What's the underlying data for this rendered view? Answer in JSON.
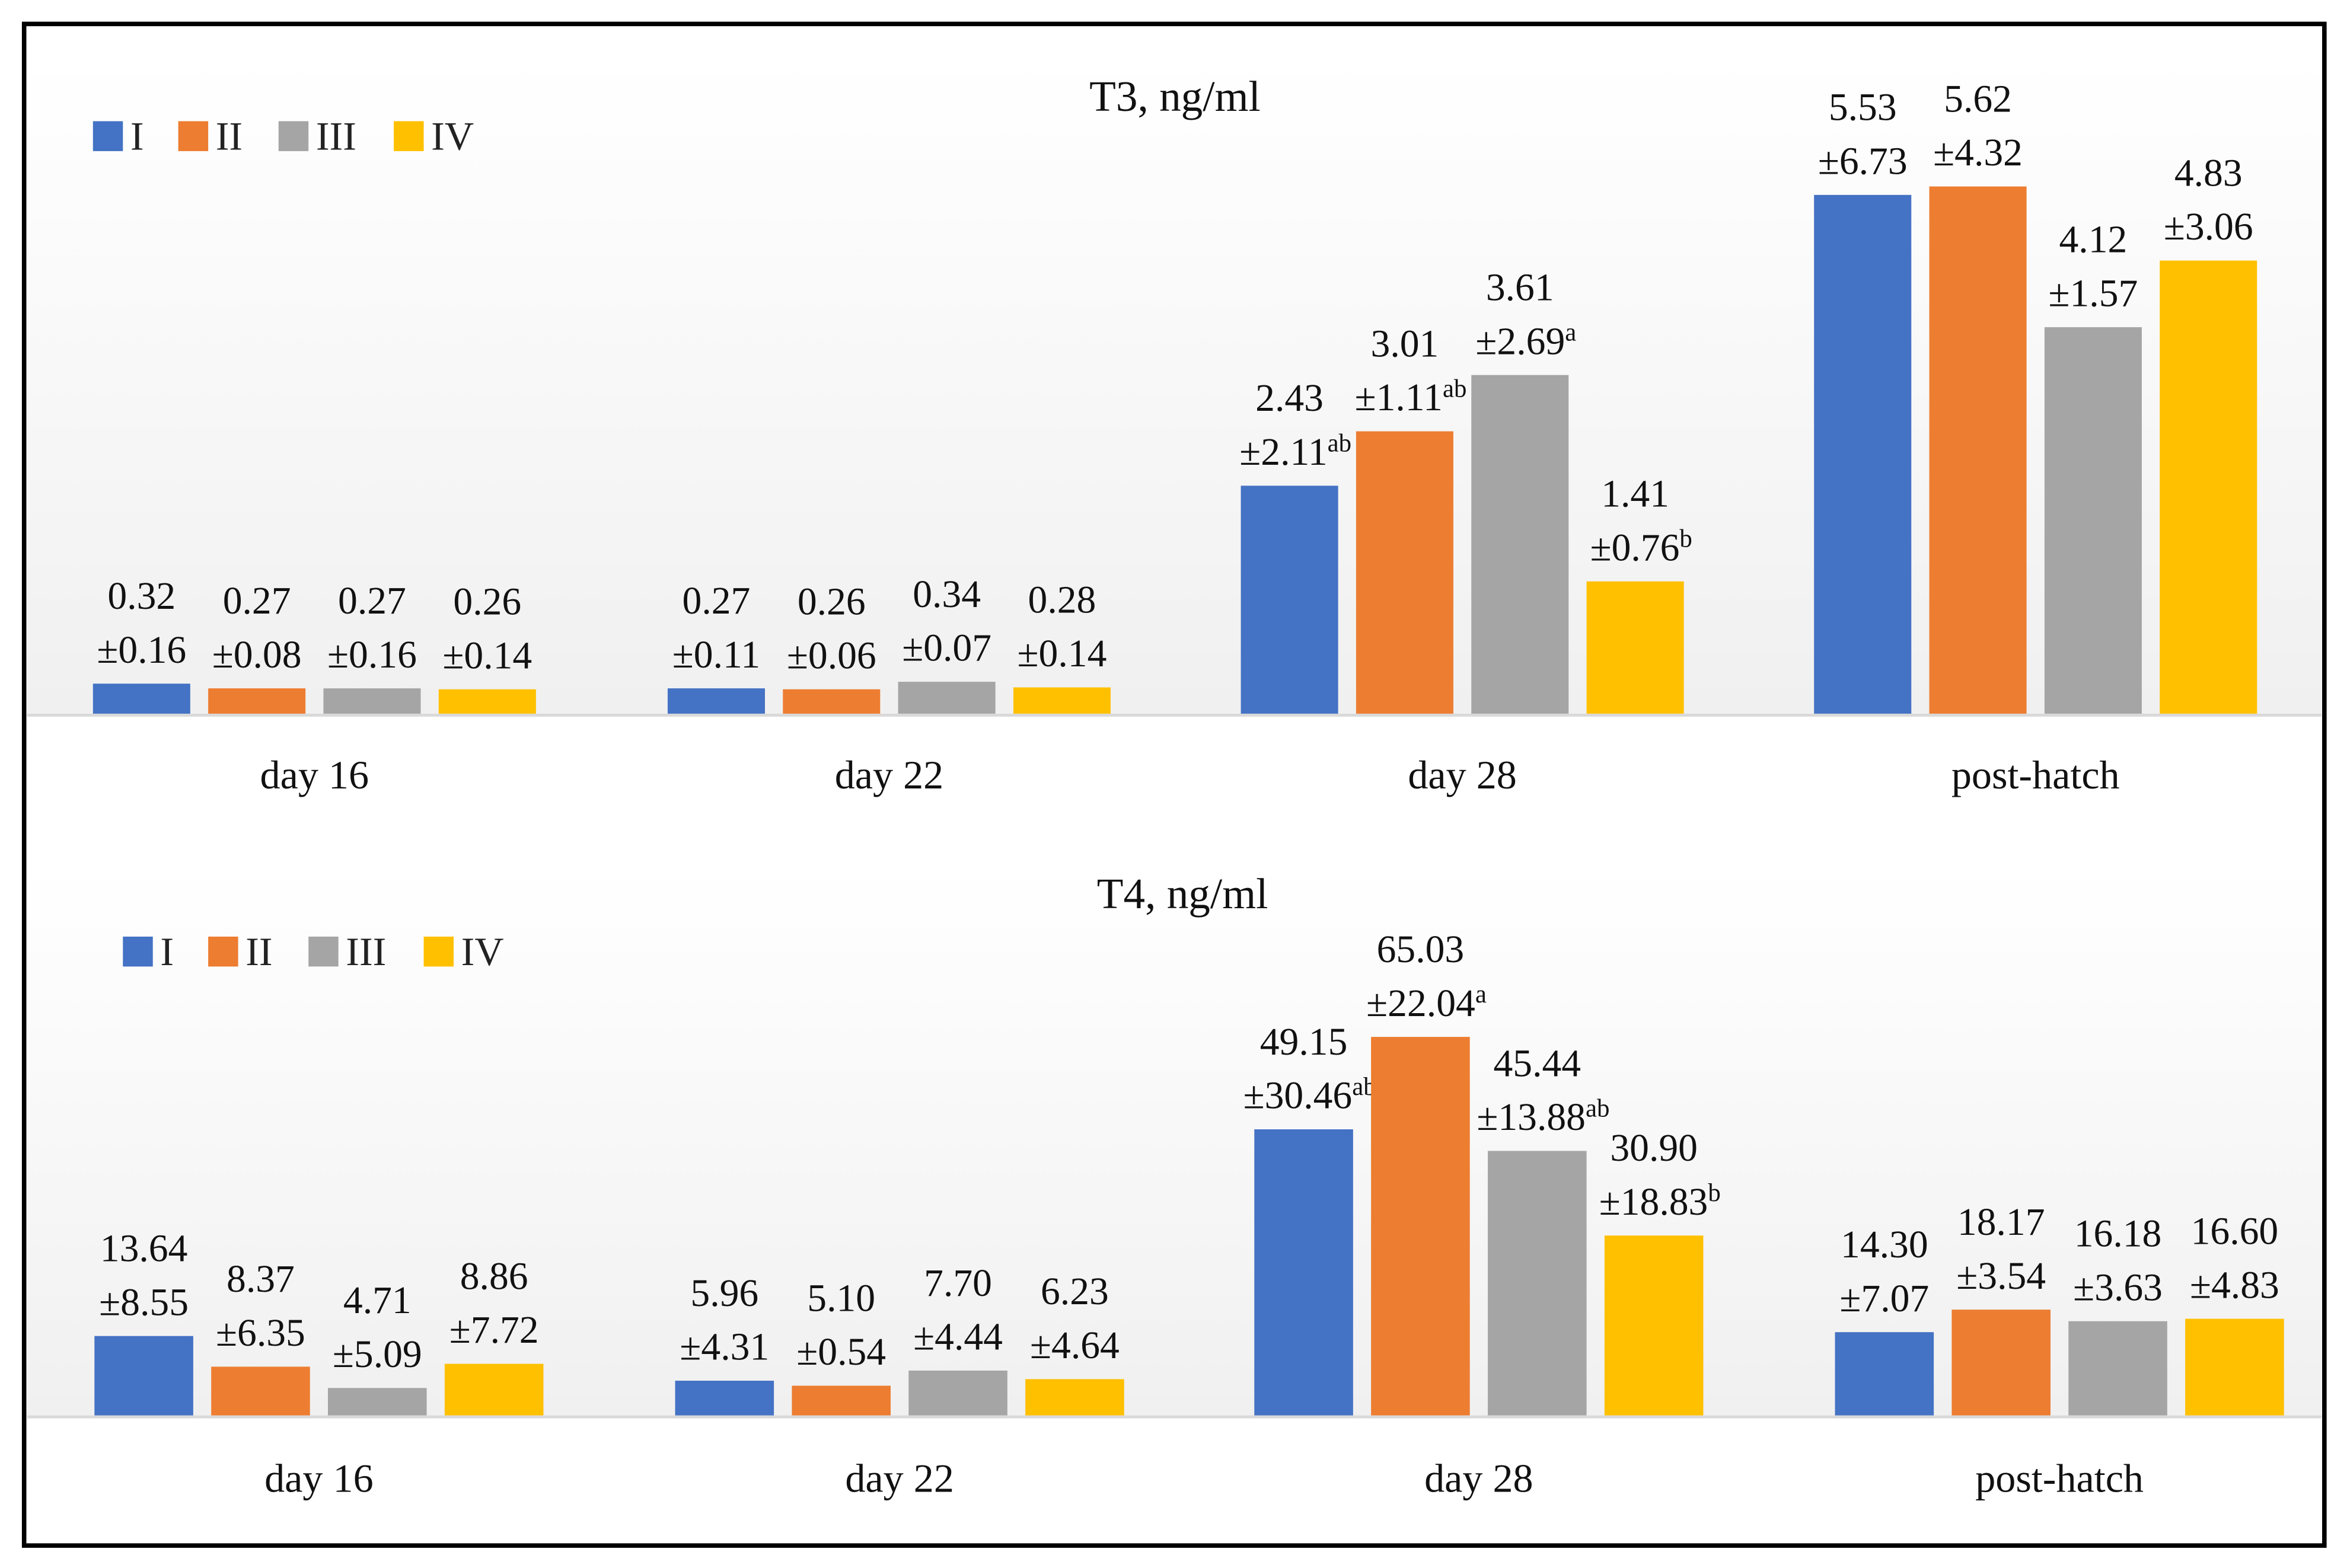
{
  "colors": {
    "I": "#4472C4",
    "II": "#ED7D31",
    "III": "#A5A5A5",
    "IV": "#FFC000"
  },
  "chart_data": [
    {
      "type": "bar",
      "title": "T3, ng/ml",
      "xlabel": "",
      "ylabel": "",
      "categories": [
        "day 16",
        "day 22",
        "day 28",
        "post-hatch"
      ],
      "legend": {
        "placement": "top-left",
        "entries": [
          "I",
          "II",
          "III",
          "IV"
        ]
      },
      "ylim": [
        0,
        6
      ],
      "grid": false,
      "series": [
        {
          "name": "I",
          "values": [
            0.32,
            0.27,
            2.43,
            5.53
          ],
          "sd": [
            "±0.16",
            "±0.11",
            "±2.11",
            "±6.73"
          ],
          "sup": [
            "",
            "",
            "ab",
            ""
          ]
        },
        {
          "name": "II",
          "values": [
            0.27,
            0.26,
            3.01,
            5.62
          ],
          "sd": [
            "±0.08",
            "±0.06",
            "±1.11",
            "±4.32"
          ],
          "sup": [
            "",
            "",
            "ab",
            ""
          ]
        },
        {
          "name": "III",
          "values": [
            0.27,
            0.34,
            3.61,
            4.12
          ],
          "sd": [
            "±0.16",
            "±0.07",
            "±2.69",
            "±1.57"
          ],
          "sup": [
            "",
            "",
            "a",
            ""
          ]
        },
        {
          "name": "IV",
          "values": [
            0.26,
            0.28,
            1.41,
            4.83
          ],
          "sd": [
            "±0.14",
            "±0.14",
            "±0.76",
            "±3.06"
          ],
          "sup": [
            "",
            "",
            "b",
            ""
          ]
        }
      ]
    },
    {
      "type": "bar",
      "title": "T4, ng/ml",
      "xlabel": "",
      "ylabel": "",
      "categories": [
        "day 16",
        "day 22",
        "day 28",
        "post-hatch"
      ],
      "legend": {
        "placement": "top-left",
        "entries": [
          "I",
          "II",
          "III",
          "IV"
        ]
      },
      "ylim": [
        0,
        70
      ],
      "grid": false,
      "series": [
        {
          "name": "I",
          "values": [
            13.64,
            5.96,
            49.15,
            14.3
          ],
          "sd": [
            "±8.55",
            "±4.31",
            "±30.46",
            "±7.07"
          ],
          "sup": [
            "",
            "",
            "ab",
            ""
          ]
        },
        {
          "name": "II",
          "values": [
            8.37,
            5.1,
            65.03,
            18.17
          ],
          "sd": [
            "±6.35",
            "±0.54",
            "±22.04",
            "±3.54"
          ],
          "sup": [
            "",
            "",
            "a",
            ""
          ]
        },
        {
          "name": "III",
          "values": [
            4.71,
            7.7,
            45.44,
            16.18
          ],
          "sd": [
            "±5.09",
            "±4.44",
            "±13.88",
            "±3.63"
          ],
          "sup": [
            "",
            "",
            "ab",
            ""
          ]
        },
        {
          "name": "IV",
          "values": [
            8.86,
            6.23,
            30.9,
            16.6
          ],
          "sd": [
            "±7.72",
            "±4.64",
            "±18.83",
            "±4.83"
          ],
          "sup": [
            "",
            "",
            "b",
            ""
          ]
        }
      ]
    }
  ]
}
